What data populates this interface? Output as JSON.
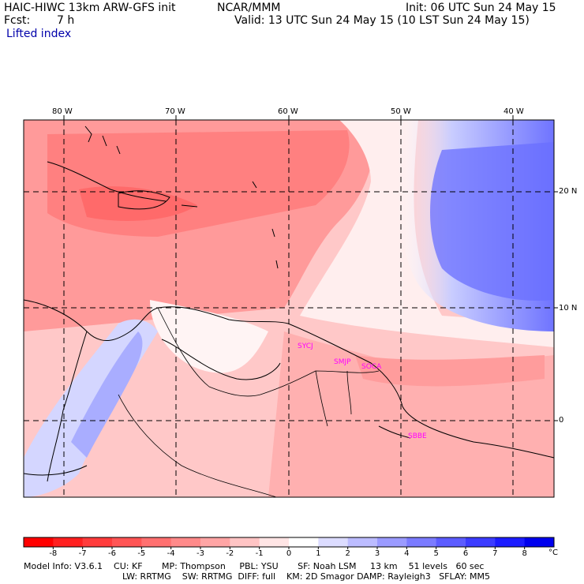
{
  "header": {
    "title_left": "HAIC-HIWC 13km ARW-GFS init",
    "org": "NCAR/MMM",
    "init": "Init: 06 UTC Sun 24 May 15",
    "fcst_label": "Fcst:",
    "fcst_value": "7 h",
    "valid": "Valid: 13 UTC Sun 24 May 15 (10 LST Sun 24 May 15)",
    "field": "Lifted index"
  },
  "map": {
    "lon_labels": [
      "80 W",
      "70 W",
      "60 W",
      "50 W",
      "40 W"
    ],
    "lat_labels": [
      "20 N",
      "10 N",
      "0"
    ],
    "stations": [
      {
        "name": "SYCJ",
        "color": "#ff00ff"
      },
      {
        "name": "SMJP",
        "color": "#ff00ff"
      },
      {
        "name": "SOCA",
        "color": "#ff00ff"
      },
      {
        "name": "SBBE",
        "color": "#ff00ff"
      }
    ]
  },
  "colorbar": {
    "labels": [
      "-8",
      "-7",
      "-6",
      "-5",
      "-4",
      "-3",
      "-2",
      "-1",
      "0",
      "1",
      "2",
      "3",
      "4",
      "5",
      "6",
      "7",
      "8"
    ],
    "unit": "°C",
    "colors": [
      "#ff0000",
      "#ff2020",
      "#ff3c3c",
      "#ff5555",
      "#ff7070",
      "#ff8a8a",
      "#ffa5a5",
      "#ffc4c4",
      "#ffe5e5",
      "#ffffff",
      "#dcdcff",
      "#bcbcff",
      "#9b9bff",
      "#7b7bff",
      "#5c5cff",
      "#3c3cff",
      "#1c1cff",
      "#0000ee"
    ]
  },
  "footer": {
    "line1": "Model Info: V3.6.1    CU: KF       MP: Thompson     PBL: YSU       SF: Noah LSM     13 km    51 levels   60 sec",
    "line2": "LW: RRTMG    SW: RRTMG  DIFF: full    KM: 2D Smagor DAMP: Rayleigh3   SFLAY: MM5"
  }
}
